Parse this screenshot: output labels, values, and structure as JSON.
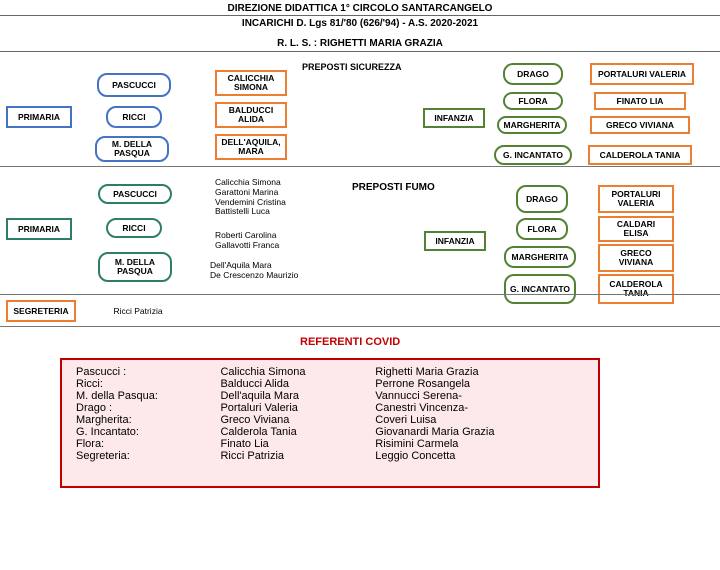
{
  "header": {
    "line1": "DIREZIONE DIDATTICA 1° CIRCOLO SANTARCANGELO",
    "line2": "INCARICHI D. Lgs 81/'80 (626/'94) -  A.S. 2020-2021",
    "rls": "R. L. S.  : RIGHETTI MARIA GRAZIA"
  },
  "colors": {
    "blue": "#4472c4",
    "orange": "#ed7d31",
    "green": "#548235",
    "teal": "#2e7d6b",
    "red": "#c00000",
    "covid_bg": "#fde9e9"
  },
  "sec_sicurezza": {
    "label": "PREPOSTI SICUREZZA",
    "primaria": "PRIMARIA",
    "pascucci": "PASCUCCI",
    "calicchia": "CALICCHIA SIMONA",
    "ricci": "RICCI",
    "balducci": "BALDUCCI ALIDA",
    "mdp": "M. DELLA PASQUA",
    "dellaquila": "DELL'AQUILA, MARA",
    "infanzia": "INFANZIA",
    "drago": "DRAGO",
    "portaluri": "PORTALURI VALERIA",
    "flora": "FLORA",
    "finato": "FINATO LIA",
    "margherita": "MARGHERITA",
    "greco": "GRECO VIVIANA",
    "gincantato": "G. INCANTATO",
    "calderola": "CALDEROLA TANIA"
  },
  "sec_fumo": {
    "label": "PREPOSTI FUMO",
    "primaria": "PRIMARIA",
    "pascucci": "PASCUCCI",
    "ricci": "RICCI",
    "mdp": "M. DELLA PASQUA",
    "list1": "Calicchia Simona\nGarattoni Marina\nVendemini Cristina\nBattistelli Luca",
    "list2": "Roberti Carolina\nGallavotti Franca",
    "list3": "Dell'Aquila Mara\nDe Crescenzo Maurizio",
    "infanzia": "INFANZIA",
    "drago": "DRAGO",
    "portaluri": "PORTALURI VALERIA",
    "flora": "FLORA",
    "caldari": "CALDARI ELISA",
    "margherita": "MARGHERITA",
    "greco": "GRECO VIVIANA",
    "gincantato": "G. INCANTATO",
    "calderola": "CALDEROLA TANIA"
  },
  "segreteria": {
    "label": "SEGRETERIA",
    "name": "Ricci Patrizia"
  },
  "covid": {
    "label": "REFERENTI COVID",
    "rows": [
      [
        "Pascucci :",
        "Calicchia Simona",
        " Righetti Maria Grazia"
      ],
      [
        "Ricci:",
        "Balducci Alida",
        "  Perrone Rosangela"
      ],
      [
        "M. della Pasqua:",
        " Dell'aquila Mara",
        "  Vannucci Serena-"
      ],
      [
        "Drago :",
        "Portaluri Valeria",
        "  Canestri Vincenza-"
      ],
      [
        "Margherita:",
        " Greco Viviana",
        "Coveri Luisa"
      ],
      [
        "G. Incantato:",
        " Calderola Tania",
        "Giovanardi Maria Grazia"
      ],
      [
        "Flora:",
        "Finato Lia",
        "Risimini Carmela"
      ],
      [
        "Segreteria:",
        "Ricci Patrizia",
        "Leggio Concetta"
      ]
    ]
  }
}
